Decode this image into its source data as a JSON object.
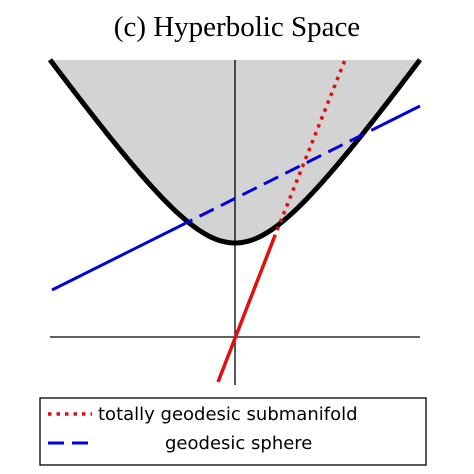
{
  "title": "(c) Hyperbolic Space",
  "legend": {
    "items": [
      {
        "label": "totally geodesic submanifold"
      },
      {
        "label": "geodesic sphere"
      }
    ]
  }
}
